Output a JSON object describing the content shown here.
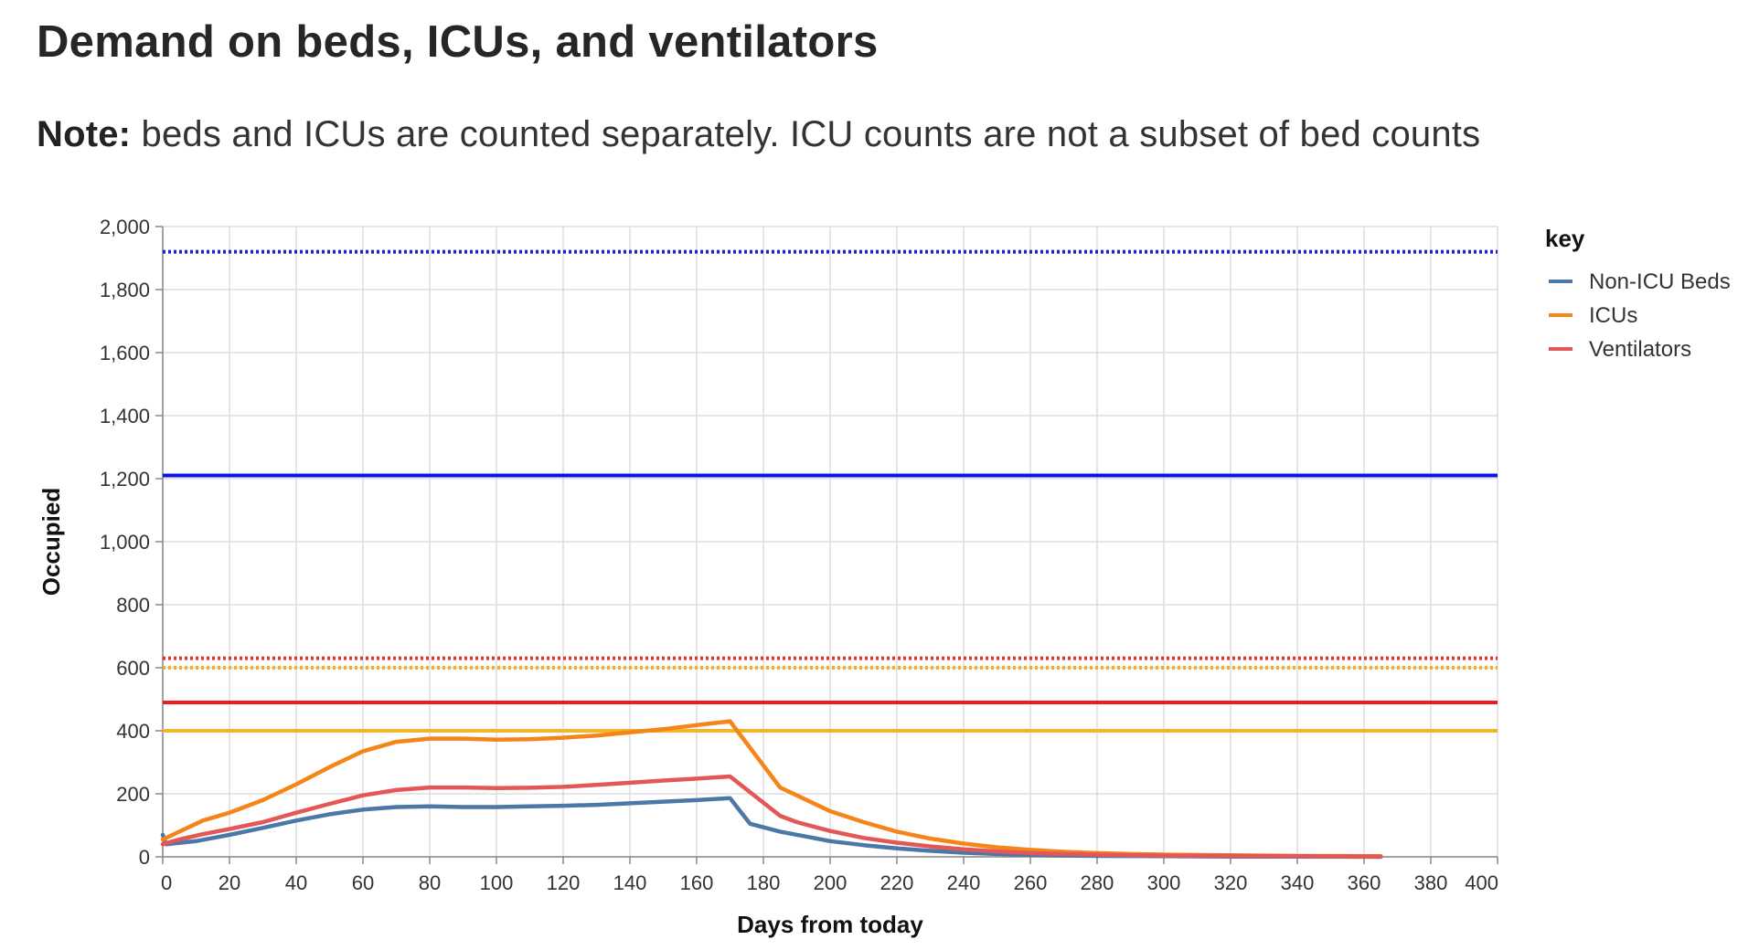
{
  "page": {
    "title": "Demand on beds, ICUs, and ventilators",
    "note_bold": "Note:",
    "note_text": " beds and ICUs are counted separately. ICU counts are not a subset of bed counts"
  },
  "chart_data": {
    "type": "line",
    "xlabel": "Days from today",
    "ylabel": "Occupied",
    "xlim": [
      0,
      400
    ],
    "ylim": [
      0,
      2000
    ],
    "xticks": [
      0,
      20,
      40,
      60,
      80,
      100,
      120,
      140,
      160,
      180,
      200,
      220,
      240,
      260,
      280,
      300,
      320,
      340,
      360,
      380,
      400
    ],
    "xtick_labels": [
      "0",
      "20",
      "40",
      "60",
      "80",
      "100",
      "120",
      "140",
      "160",
      "180",
      "200",
      "220",
      "240",
      "260",
      "280",
      "300",
      "320",
      "340",
      "360",
      "380",
      "400"
    ],
    "yticks": [
      0,
      200,
      400,
      600,
      800,
      1000,
      1200,
      1400,
      1600,
      1800,
      2000
    ],
    "ytick_labels": [
      "0",
      "200",
      "400",
      "600",
      "800",
      "1,000",
      "1,200",
      "1,400",
      "1,600",
      "1,800",
      "2,000"
    ],
    "grid": true,
    "legend": {
      "title": "key",
      "position": "right",
      "entries": [
        {
          "name": "Non-ICU Beds",
          "color": "#4c78a8"
        },
        {
          "name": "ICUs",
          "color": "#f58518"
        },
        {
          "name": "Ventilators",
          "color": "#e45756"
        }
      ]
    },
    "series": [
      {
        "name": "Non-ICU Beds",
        "color": "#4c78a8",
        "points": [
          [
            0,
            70
          ],
          [
            1,
            40
          ],
          [
            10,
            50
          ],
          [
            20,
            70
          ],
          [
            30,
            92
          ],
          [
            40,
            115
          ],
          [
            50,
            135
          ],
          [
            60,
            150
          ],
          [
            70,
            158
          ],
          [
            80,
            160
          ],
          [
            90,
            158
          ],
          [
            100,
            158
          ],
          [
            110,
            160
          ],
          [
            120,
            162
          ],
          [
            130,
            165
          ],
          [
            140,
            170
          ],
          [
            150,
            175
          ],
          [
            160,
            180
          ],
          [
            170,
            186
          ],
          [
            176,
            105
          ],
          [
            185,
            80
          ],
          [
            200,
            50
          ],
          [
            210,
            37
          ],
          [
            220,
            27
          ],
          [
            230,
            19
          ],
          [
            240,
            13
          ],
          [
            250,
            9
          ],
          [
            260,
            6
          ],
          [
            270,
            4
          ],
          [
            280,
            3
          ],
          [
            300,
            2
          ],
          [
            320,
            1
          ],
          [
            340,
            1
          ],
          [
            365,
            0
          ]
        ]
      },
      {
        "name": "ICUs",
        "color": "#f58518",
        "points": [
          [
            0,
            55
          ],
          [
            5,
            80
          ],
          [
            12,
            115
          ],
          [
            20,
            140
          ],
          [
            30,
            180
          ],
          [
            40,
            230
          ],
          [
            50,
            285
          ],
          [
            60,
            335
          ],
          [
            70,
            365
          ],
          [
            80,
            375
          ],
          [
            90,
            375
          ],
          [
            100,
            372
          ],
          [
            110,
            373
          ],
          [
            120,
            378
          ],
          [
            130,
            385
          ],
          [
            140,
            395
          ],
          [
            150,
            405
          ],
          [
            160,
            418
          ],
          [
            170,
            430
          ],
          [
            185,
            220
          ],
          [
            190,
            195
          ],
          [
            200,
            145
          ],
          [
            210,
            110
          ],
          [
            220,
            80
          ],
          [
            230,
            58
          ],
          [
            240,
            42
          ],
          [
            250,
            30
          ],
          [
            260,
            22
          ],
          [
            270,
            16
          ],
          [
            280,
            12
          ],
          [
            290,
            9
          ],
          [
            300,
            7
          ],
          [
            320,
            5
          ],
          [
            340,
            3
          ],
          [
            365,
            2
          ]
        ]
      },
      {
        "name": "Ventilators",
        "color": "#e45756",
        "points": [
          [
            0,
            40
          ],
          [
            5,
            55
          ],
          [
            12,
            72
          ],
          [
            20,
            88
          ],
          [
            30,
            110
          ],
          [
            40,
            140
          ],
          [
            50,
            168
          ],
          [
            60,
            195
          ],
          [
            70,
            212
          ],
          [
            80,
            220
          ],
          [
            90,
            220
          ],
          [
            100,
            218
          ],
          [
            110,
            219
          ],
          [
            120,
            222
          ],
          [
            130,
            228
          ],
          [
            140,
            235
          ],
          [
            150,
            242
          ],
          [
            160,
            248
          ],
          [
            170,
            255
          ],
          [
            185,
            130
          ],
          [
            190,
            110
          ],
          [
            200,
            82
          ],
          [
            210,
            60
          ],
          [
            220,
            45
          ],
          [
            230,
            33
          ],
          [
            240,
            24
          ],
          [
            250,
            17
          ],
          [
            260,
            12
          ],
          [
            270,
            9
          ],
          [
            280,
            7
          ],
          [
            290,
            5
          ],
          [
            300,
            4
          ],
          [
            320,
            3
          ],
          [
            340,
            2
          ],
          [
            365,
            1
          ]
        ]
      }
    ],
    "capacity_lines": [
      {
        "value": 1920,
        "color": "#1f1fd9",
        "style": "dotted"
      },
      {
        "value": 1210,
        "color": "#0a14e6",
        "style": "solid"
      },
      {
        "value": 630,
        "color": "#e83030",
        "style": "dotted"
      },
      {
        "value": 600,
        "color": "#f0b020",
        "style": "dotted"
      },
      {
        "value": 490,
        "color": "#f01a1a",
        "style": "solid"
      },
      {
        "value": 400,
        "color": "#f5b52a",
        "style": "solid"
      }
    ]
  }
}
